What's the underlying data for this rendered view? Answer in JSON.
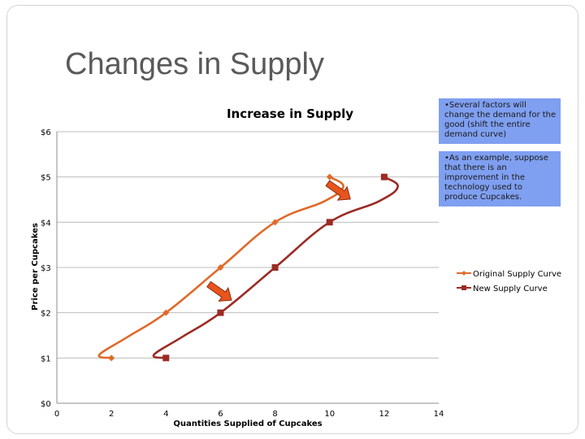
{
  "slide": {
    "title": "Changes in Supply",
    "notes": [
      "•Several factors will change the demand for the good (shift the entire demand curve)",
      "•As an example, suppose that there is an improvement in the technology used to produce Cupcakes."
    ]
  },
  "chart_data": {
    "type": "line",
    "title": "Increase in Supply",
    "xlabel": "Quantities Supplied of Cupcakes",
    "ylabel": "Price per Cupcakes",
    "xlim": [
      0,
      14
    ],
    "ylim": [
      0,
      6
    ],
    "x_ticks": [
      "0",
      "2",
      "4",
      "6",
      "8",
      "10",
      "12",
      "14"
    ],
    "y_ticks": [
      "$0",
      "$1",
      "$2",
      "$3",
      "$4",
      "$5",
      "$6"
    ],
    "grid": "horizontal",
    "legend_position": "right",
    "series": [
      {
        "name": "Original Supply Curve",
        "color": "#e06a2a",
        "marker": "diamond",
        "points": [
          [
            2,
            1
          ],
          [
            4,
            2
          ],
          [
            6,
            3
          ],
          [
            8,
            4
          ],
          [
            10,
            5
          ]
        ]
      },
      {
        "name": "New Supply Curve",
        "color": "#9b2b24",
        "marker": "square",
        "points": [
          [
            4,
            1
          ],
          [
            6,
            2
          ],
          [
            8,
            3
          ],
          [
            10,
            4
          ],
          [
            12,
            5
          ]
        ]
      }
    ],
    "annotations": [
      {
        "type": "arrow",
        "color": "#e8541c",
        "icon": "shift-right-arrow-icon"
      },
      {
        "type": "arrow",
        "color": "#e8541c",
        "icon": "shift-right-arrow-icon"
      }
    ]
  }
}
